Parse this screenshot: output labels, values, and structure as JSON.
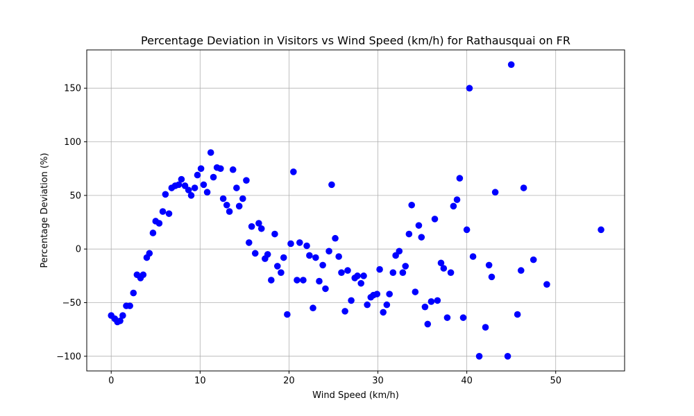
{
  "chart_data": {
    "type": "scatter",
    "title": "Percentage Deviation in Visitors vs Wind Speed (km/h) for Rathausquai on FR",
    "xlabel": "Wind Speed (km/h)",
    "ylabel": "Percentage Deviation (%)",
    "xlim": [
      -2.75,
      57.75
    ],
    "ylim": [
      -113.7,
      185.7
    ],
    "xticks": [
      0,
      10,
      20,
      30,
      40,
      50
    ],
    "yticks": [
      -100,
      -50,
      0,
      50,
      100,
      150
    ],
    "grid": true,
    "marker_color": "#0000ff",
    "points": [
      [
        0.0,
        -62
      ],
      [
        0.4,
        -65
      ],
      [
        0.7,
        -68
      ],
      [
        1.0,
        -67
      ],
      [
        1.3,
        -62
      ],
      [
        1.7,
        -53
      ],
      [
        2.1,
        -53
      ],
      [
        2.5,
        -41
      ],
      [
        2.9,
        -24
      ],
      [
        3.3,
        -27
      ],
      [
        3.6,
        -24
      ],
      [
        4.0,
        -8
      ],
      [
        4.3,
        -4
      ],
      [
        4.7,
        15
      ],
      [
        5.0,
        26
      ],
      [
        5.4,
        24
      ],
      [
        5.8,
        35
      ],
      [
        6.1,
        51
      ],
      [
        6.5,
        33
      ],
      [
        6.8,
        57
      ],
      [
        7.2,
        59
      ],
      [
        7.6,
        60
      ],
      [
        7.9,
        65
      ],
      [
        8.3,
        59
      ],
      [
        8.7,
        55
      ],
      [
        9.0,
        50
      ],
      [
        9.4,
        57
      ],
      [
        9.7,
        69
      ],
      [
        10.1,
        75
      ],
      [
        10.4,
        60
      ],
      [
        10.8,
        53
      ],
      [
        11.2,
        90
      ],
      [
        11.5,
        67
      ],
      [
        11.9,
        76
      ],
      [
        12.3,
        75
      ],
      [
        12.6,
        47
      ],
      [
        13.0,
        41
      ],
      [
        13.3,
        35
      ],
      [
        13.7,
        74
      ],
      [
        14.1,
        57
      ],
      [
        14.4,
        40
      ],
      [
        14.8,
        47
      ],
      [
        15.2,
        64
      ],
      [
        15.5,
        6
      ],
      [
        15.8,
        21
      ],
      [
        16.2,
        -4
      ],
      [
        16.6,
        24
      ],
      [
        16.9,
        19
      ],
      [
        17.3,
        -9
      ],
      [
        17.6,
        -5
      ],
      [
        18.0,
        -29
      ],
      [
        18.4,
        14
      ],
      [
        18.7,
        -16
      ],
      [
        19.1,
        -22
      ],
      [
        19.4,
        -8
      ],
      [
        19.8,
        -61
      ],
      [
        20.2,
        5
      ],
      [
        20.5,
        72
      ],
      [
        20.9,
        -29
      ],
      [
        21.2,
        6
      ],
      [
        21.6,
        -29
      ],
      [
        22.0,
        3
      ],
      [
        22.3,
        -6
      ],
      [
        22.7,
        -55
      ],
      [
        23.0,
        -8
      ],
      [
        23.4,
        -30
      ],
      [
        23.8,
        -15
      ],
      [
        24.1,
        -37
      ],
      [
        24.5,
        -2
      ],
      [
        24.8,
        60
      ],
      [
        25.2,
        10
      ],
      [
        25.6,
        -7
      ],
      [
        25.9,
        -22
      ],
      [
        26.3,
        -58
      ],
      [
        26.6,
        -20
      ],
      [
        27.0,
        -48
      ],
      [
        27.4,
        -27
      ],
      [
        27.7,
        -25
      ],
      [
        28.1,
        -32
      ],
      [
        28.4,
        -25
      ],
      [
        28.8,
        -52
      ],
      [
        29.2,
        -45
      ],
      [
        29.5,
        -43
      ],
      [
        29.9,
        -42
      ],
      [
        30.2,
        -19
      ],
      [
        30.6,
        -59
      ],
      [
        31.0,
        -52
      ],
      [
        31.3,
        -42
      ],
      [
        31.7,
        -22
      ],
      [
        32.0,
        -6
      ],
      [
        32.4,
        -2
      ],
      [
        32.8,
        -22
      ],
      [
        33.1,
        -16
      ],
      [
        33.5,
        14
      ],
      [
        33.8,
        41
      ],
      [
        34.2,
        -40
      ],
      [
        34.6,
        22
      ],
      [
        34.9,
        11
      ],
      [
        35.3,
        -54
      ],
      [
        35.6,
        -70
      ],
      [
        36.0,
        -49
      ],
      [
        36.4,
        28
      ],
      [
        36.7,
        -48
      ],
      [
        37.1,
        -13
      ],
      [
        37.4,
        -18
      ],
      [
        37.8,
        -64
      ],
      [
        38.2,
        -22
      ],
      [
        38.5,
        40
      ],
      [
        38.9,
        46
      ],
      [
        39.2,
        66
      ],
      [
        39.6,
        -64
      ],
      [
        40.0,
        18
      ],
      [
        40.3,
        150
      ],
      [
        40.7,
        -7
      ],
      [
        41.4,
        -100
      ],
      [
        42.1,
        -73
      ],
      [
        42.5,
        -15
      ],
      [
        42.8,
        -26
      ],
      [
        43.2,
        53
      ],
      [
        44.6,
        -100
      ],
      [
        45.0,
        172
      ],
      [
        45.7,
        -61
      ],
      [
        46.1,
        -20
      ],
      [
        46.4,
        57
      ],
      [
        47.5,
        -10
      ],
      [
        49.0,
        -33
      ],
      [
        55.1,
        18
      ]
    ]
  }
}
